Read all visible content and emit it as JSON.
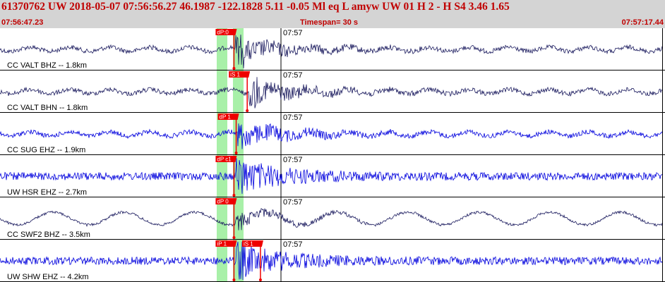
{
  "header": {
    "event_line": "61370762 UW 2018-05-07 07:56:56.27   46.1987 -122.1828   5.11 -0.05 Ml  eq  L amyw     UW 01  H   2  -  H S4     3.46  1.65",
    "start_time": "07:56:47.23",
    "timespan": "Timespan=  30 s",
    "end_time": "07:57:17.44"
  },
  "colors": {
    "header_bg": "#d4d4d4",
    "header_text": "#c00000",
    "trace_navy": "#1a1a5e",
    "trace_blue": "#0000dd",
    "highlight_green": "#a8f0a8",
    "pick_red": "#ee0000"
  },
  "minute_label": "07:57",
  "channels": [
    {
      "label": "CC VALT BHZ -- 1.8km",
      "color": "navy",
      "style": "normal",
      "picks": [
        {
          "label": "dP:0",
          "t": 10.6
        }
      ]
    },
    {
      "label": "CC VALT BHN -- 1.8km",
      "color": "navy",
      "style": "normal",
      "picks": [
        {
          "label": "iS 1",
          "t": 11.2
        }
      ]
    },
    {
      "label": "CC SUG EHZ -- 1.9km",
      "color": "blue",
      "style": "normal",
      "picks": [
        {
          "label": "dP 1",
          "t": 10.7
        }
      ]
    },
    {
      "label": "UW HSR EHZ -- 2.7km",
      "color": "blue",
      "style": "noisy",
      "picks": [
        {
          "label": "dP c1",
          "t": 10.6
        }
      ]
    },
    {
      "label": "CC SWF2 BHZ -- 3.5km",
      "color": "navy",
      "style": "long-period",
      "picks": [
        {
          "label": "dP 0",
          "t": 10.6
        }
      ]
    },
    {
      "label": "UW SHW EHZ -- 4.2km",
      "color": "blue",
      "style": "noisy",
      "picks": [
        {
          "label": "iP 1",
          "t": 10.6
        },
        {
          "label": "iS 1",
          "t": 11.8
        }
      ]
    }
  ]
}
